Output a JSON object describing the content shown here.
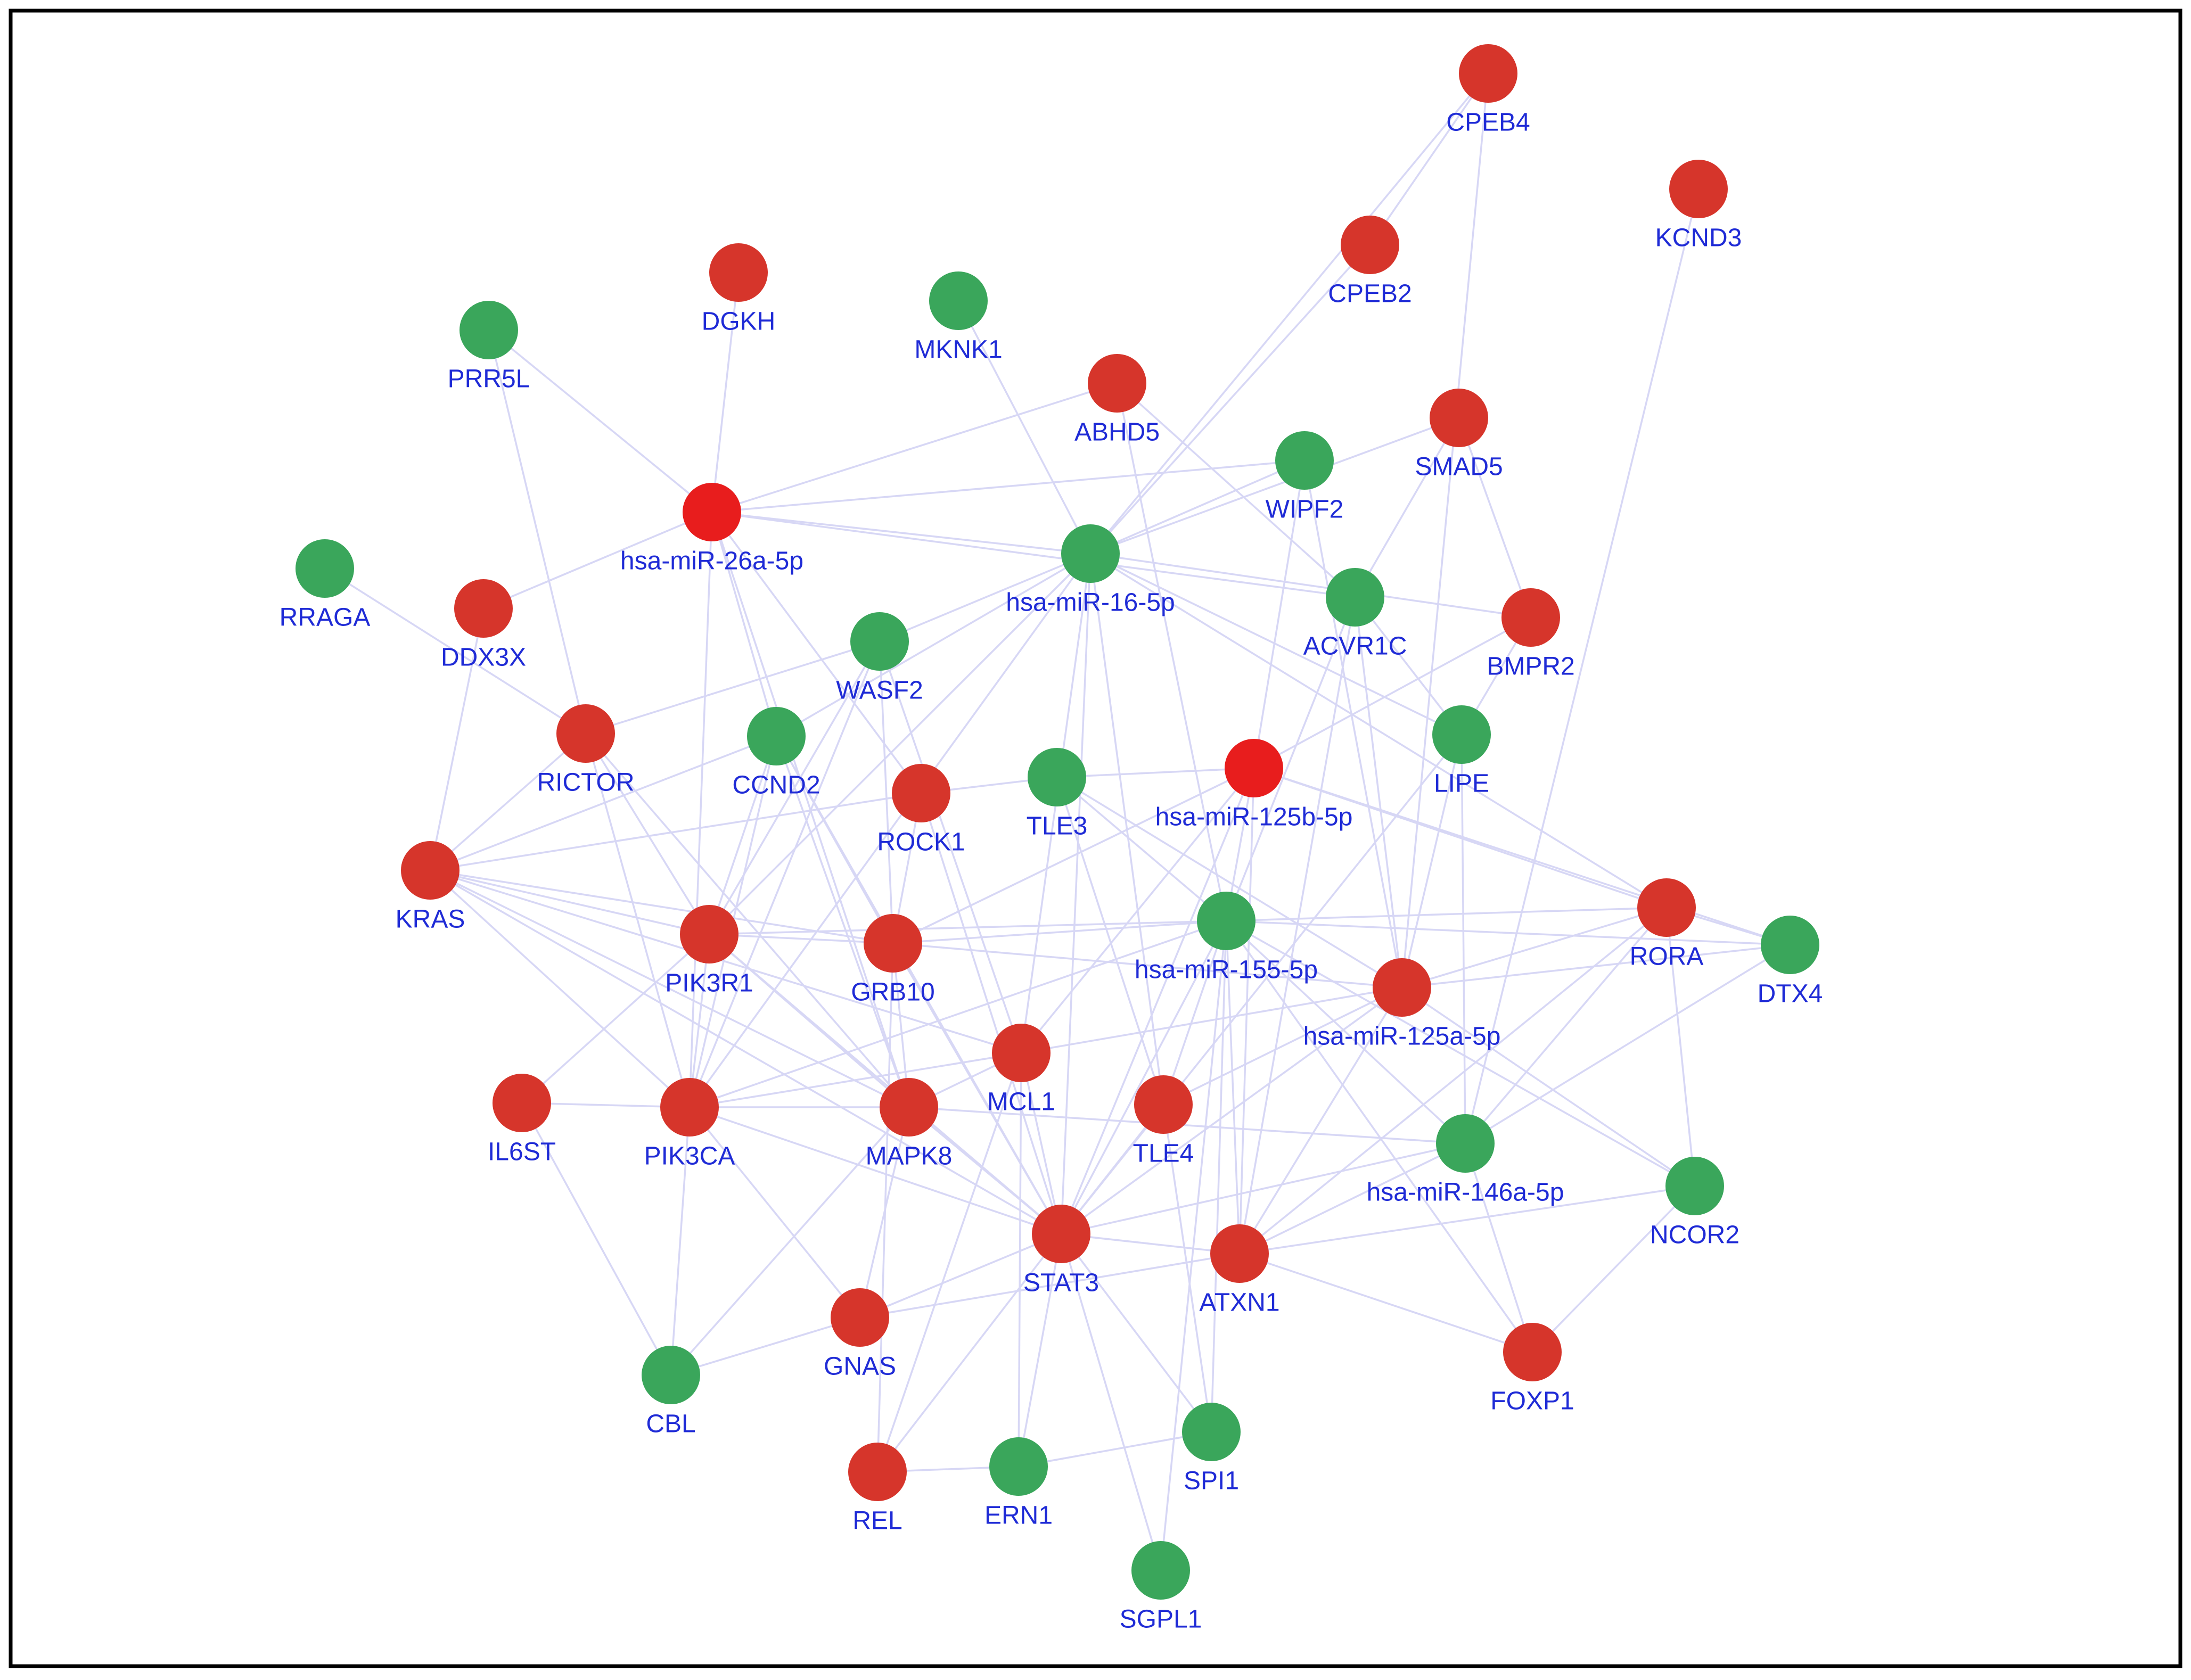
{
  "colors": {
    "edge": "#d7d7f5",
    "node_red": "#d6352b",
    "node_bright_red": "#e81d1d",
    "node_green": "#3aa65b",
    "label": "#1f2bd6",
    "border": "#000000",
    "background": "#ffffff"
  },
  "nodes": [
    {
      "id": "CPEB4",
      "label": "CPEB4",
      "color": "red"
    },
    {
      "id": "KCND3",
      "label": "KCND3",
      "color": "red"
    },
    {
      "id": "CPEB2",
      "label": "CPEB2",
      "color": "red"
    },
    {
      "id": "DGKH",
      "label": "DGKH",
      "color": "red"
    },
    {
      "id": "MKNK1",
      "label": "MKNK1",
      "color": "green"
    },
    {
      "id": "PRR5L",
      "label": "PRR5L",
      "color": "green"
    },
    {
      "id": "ABHD5",
      "label": "ABHD5",
      "color": "red"
    },
    {
      "id": "SMAD5",
      "label": "SMAD5",
      "color": "red"
    },
    {
      "id": "WIPF2",
      "label": "WIPF2",
      "color": "green"
    },
    {
      "id": "miR26a",
      "label": "hsa-miR-26a-5p",
      "color": "bright_red"
    },
    {
      "id": "miR16",
      "label": "hsa-miR-16-5p",
      "color": "green"
    },
    {
      "id": "RRAGA",
      "label": "RRAGA",
      "color": "green"
    },
    {
      "id": "DDX3X",
      "label": "DDX3X",
      "color": "red"
    },
    {
      "id": "ACVR1C",
      "label": "ACVR1C",
      "color": "green"
    },
    {
      "id": "BMPR2",
      "label": "BMPR2",
      "color": "red"
    },
    {
      "id": "WASF2",
      "label": "WASF2",
      "color": "green"
    },
    {
      "id": "RICTOR",
      "label": "RICTOR",
      "color": "red"
    },
    {
      "id": "CCND2",
      "label": "CCND2",
      "color": "green"
    },
    {
      "id": "LIPE",
      "label": "LIPE",
      "color": "green"
    },
    {
      "id": "ROCK1",
      "label": "ROCK1",
      "color": "red"
    },
    {
      "id": "TLE3",
      "label": "TLE3",
      "color": "green"
    },
    {
      "id": "miR125b",
      "label": "hsa-miR-125b-5p",
      "color": "bright_red"
    },
    {
      "id": "KRAS",
      "label": "KRAS",
      "color": "red"
    },
    {
      "id": "PIK3R1",
      "label": "PIK3R1",
      "color": "red"
    },
    {
      "id": "GRB10",
      "label": "GRB10",
      "color": "red"
    },
    {
      "id": "miR155",
      "label": "hsa-miR-155-5p",
      "color": "green"
    },
    {
      "id": "RORA",
      "label": "RORA",
      "color": "red"
    },
    {
      "id": "DTX4",
      "label": "DTX4",
      "color": "green"
    },
    {
      "id": "miR125a",
      "label": "hsa-miR-125a-5p",
      "color": "red"
    },
    {
      "id": "MCL1",
      "label": "MCL1",
      "color": "red"
    },
    {
      "id": "IL6ST",
      "label": "IL6ST",
      "color": "red"
    },
    {
      "id": "PIK3CA",
      "label": "PIK3CA",
      "color": "red"
    },
    {
      "id": "MAPK8",
      "label": "MAPK8",
      "color": "red"
    },
    {
      "id": "TLE4",
      "label": "TLE4",
      "color": "red"
    },
    {
      "id": "miR146a",
      "label": "hsa-miR-146a-5p",
      "color": "green"
    },
    {
      "id": "NCOR2",
      "label": "NCOR2",
      "color": "green"
    },
    {
      "id": "STAT3",
      "label": "STAT3",
      "color": "red"
    },
    {
      "id": "ATXN1",
      "label": "ATXN1",
      "color": "red"
    },
    {
      "id": "GNAS",
      "label": "GNAS",
      "color": "red"
    },
    {
      "id": "FOXP1",
      "label": "FOXP1",
      "color": "red"
    },
    {
      "id": "CBL",
      "label": "CBL",
      "color": "green"
    },
    {
      "id": "SPI1",
      "label": "SPI1",
      "color": "green"
    },
    {
      "id": "REL",
      "label": "REL",
      "color": "red"
    },
    {
      "id": "ERN1",
      "label": "ERN1",
      "color": "green"
    },
    {
      "id": "SGPL1",
      "label": "SGPL1",
      "color": "green"
    }
  ],
  "edges": [
    [
      "CPEB4",
      "miR16"
    ],
    [
      "CPEB4",
      "CPEB2"
    ],
    [
      "CPEB4",
      "miR125a"
    ],
    [
      "KCND3",
      "miR146a"
    ],
    [
      "CPEB2",
      "miR16"
    ],
    [
      "DGKH",
      "miR26a"
    ],
    [
      "MKNK1",
      "miR16"
    ],
    [
      "PRR5L",
      "miR26a"
    ],
    [
      "PRR5L",
      "RICTOR"
    ],
    [
      "ABHD5",
      "miR26a"
    ],
    [
      "ABHD5",
      "ACVR1C"
    ],
    [
      "ABHD5",
      "miR155"
    ],
    [
      "SMAD5",
      "ACVR1C"
    ],
    [
      "SMAD5",
      "BMPR2"
    ],
    [
      "SMAD5",
      "miR16"
    ],
    [
      "WIPF2",
      "miR26a"
    ],
    [
      "WIPF2",
      "miR16"
    ],
    [
      "WIPF2",
      "miR125b"
    ],
    [
      "WIPF2",
      "miR125a"
    ],
    [
      "miR26a",
      "miR16"
    ],
    [
      "miR26a",
      "DDX3X"
    ],
    [
      "miR26a",
      "CCND2"
    ],
    [
      "miR26a",
      "ROCK1"
    ],
    [
      "miR26a",
      "PIK3CA"
    ],
    [
      "miR26a",
      "MAPK8"
    ],
    [
      "miR26a",
      "ACVR1C"
    ],
    [
      "miR16",
      "WASF2"
    ],
    [
      "miR16",
      "BMPR2"
    ],
    [
      "miR16",
      "LIPE"
    ],
    [
      "miR16",
      "PIK3R1"
    ],
    [
      "miR16",
      "TLE4"
    ],
    [
      "miR16",
      "CCND2"
    ],
    [
      "miR16",
      "MCL1"
    ],
    [
      "miR16",
      "RORA"
    ],
    [
      "miR16",
      "PIK3CA"
    ],
    [
      "miR16",
      "STAT3"
    ],
    [
      "RRAGA",
      "RICTOR"
    ],
    [
      "DDX3X",
      "KRAS"
    ],
    [
      "ACVR1C",
      "miR155"
    ],
    [
      "ACVR1C",
      "miR125a"
    ],
    [
      "ACVR1C",
      "ATXN1"
    ],
    [
      "ACVR1C",
      "LIPE"
    ],
    [
      "BMPR2",
      "miR125b"
    ],
    [
      "BMPR2",
      "LIPE"
    ],
    [
      "WASF2",
      "RICTOR"
    ],
    [
      "WASF2",
      "PIK3CA"
    ],
    [
      "WASF2",
      "GRB10"
    ],
    [
      "WASF2",
      "MCL1"
    ],
    [
      "WASF2",
      "PIK3R1"
    ],
    [
      "RICTOR",
      "KRAS"
    ],
    [
      "RICTOR",
      "PIK3R1"
    ],
    [
      "RICTOR",
      "MAPK8"
    ],
    [
      "RICTOR",
      "PIK3CA"
    ],
    [
      "CCND2",
      "KRAS"
    ],
    [
      "CCND2",
      "PIK3CA"
    ],
    [
      "CCND2",
      "GRB10"
    ],
    [
      "CCND2",
      "MAPK8"
    ],
    [
      "CCND2",
      "PIK3R1"
    ],
    [
      "CCND2",
      "STAT3"
    ],
    [
      "LIPE",
      "miR125a"
    ],
    [
      "LIPE",
      "miR146a"
    ],
    [
      "LIPE",
      "STAT3"
    ],
    [
      "ROCK1",
      "KRAS"
    ],
    [
      "ROCK1",
      "TLE3"
    ],
    [
      "ROCK1",
      "GRB10"
    ],
    [
      "ROCK1",
      "STAT3"
    ],
    [
      "TLE3",
      "miR125b"
    ],
    [
      "TLE3",
      "miR155"
    ],
    [
      "TLE3",
      "TLE4"
    ],
    [
      "TLE3",
      "miR125a"
    ],
    [
      "miR125b",
      "RORA"
    ],
    [
      "miR125b",
      "GRB10"
    ],
    [
      "miR125b",
      "MCL1"
    ],
    [
      "miR125b",
      "miR155"
    ],
    [
      "miR125b",
      "DTX4"
    ],
    [
      "miR125b",
      "STAT3"
    ],
    [
      "miR125b",
      "ATXN1"
    ],
    [
      "KRAS",
      "PIK3R1"
    ],
    [
      "KRAS",
      "PIK3CA"
    ],
    [
      "KRAS",
      "GRB10"
    ],
    [
      "KRAS",
      "MAPK8"
    ],
    [
      "KRAS",
      "MCL1"
    ],
    [
      "KRAS",
      "STAT3"
    ],
    [
      "PIK3R1",
      "PIK3CA"
    ],
    [
      "PIK3R1",
      "GRB10"
    ],
    [
      "PIK3R1",
      "IL6ST"
    ],
    [
      "PIK3R1",
      "STAT3"
    ],
    [
      "PIK3R1",
      "miR155"
    ],
    [
      "PIK3R1",
      "MAPK8"
    ],
    [
      "GRB10",
      "MAPK8"
    ],
    [
      "GRB10",
      "miR155"
    ],
    [
      "GRB10",
      "STAT3"
    ],
    [
      "GRB10",
      "miR125a"
    ],
    [
      "GRB10",
      "REL"
    ],
    [
      "miR155",
      "RORA"
    ],
    [
      "miR155",
      "DTX4"
    ],
    [
      "miR155",
      "STAT3"
    ],
    [
      "miR155",
      "ATXN1"
    ],
    [
      "miR155",
      "SPI1"
    ],
    [
      "miR155",
      "SGPL1"
    ],
    [
      "miR155",
      "miR146a"
    ],
    [
      "miR155",
      "FOXP1"
    ],
    [
      "miR155",
      "NCOR2"
    ],
    [
      "miR155",
      "TLE4"
    ],
    [
      "miR155",
      "PIK3CA"
    ],
    [
      "RORA",
      "miR125a"
    ],
    [
      "RORA",
      "DTX4"
    ],
    [
      "RORA",
      "NCOR2"
    ],
    [
      "RORA",
      "ATXN1"
    ],
    [
      "RORA",
      "miR146a"
    ],
    [
      "DTX4",
      "miR125a"
    ],
    [
      "DTX4",
      "miR146a"
    ],
    [
      "miR125a",
      "MCL1"
    ],
    [
      "miR125a",
      "STAT3"
    ],
    [
      "miR125a",
      "ATXN1"
    ],
    [
      "miR125a",
      "NCOR2"
    ],
    [
      "miR125a",
      "TLE4"
    ],
    [
      "MCL1",
      "MAPK8"
    ],
    [
      "MCL1",
      "PIK3CA"
    ],
    [
      "MCL1",
      "STAT3"
    ],
    [
      "MCL1",
      "REL"
    ],
    [
      "MCL1",
      "ERN1"
    ],
    [
      "IL6ST",
      "PIK3CA"
    ],
    [
      "IL6ST",
      "CBL"
    ],
    [
      "PIK3CA",
      "MAPK8"
    ],
    [
      "PIK3CA",
      "STAT3"
    ],
    [
      "PIK3CA",
      "GNAS"
    ],
    [
      "PIK3CA",
      "CBL"
    ],
    [
      "MAPK8",
      "STAT3"
    ],
    [
      "MAPK8",
      "GNAS"
    ],
    [
      "MAPK8",
      "CBL"
    ],
    [
      "MAPK8",
      "miR146a"
    ],
    [
      "TLE4",
      "STAT3"
    ],
    [
      "TLE4",
      "SPI1"
    ],
    [
      "miR146a",
      "STAT3"
    ],
    [
      "miR146a",
      "ATXN1"
    ],
    [
      "miR146a",
      "FOXP1"
    ],
    [
      "NCOR2",
      "ATXN1"
    ],
    [
      "NCOR2",
      "FOXP1"
    ],
    [
      "STAT3",
      "ATXN1"
    ],
    [
      "STAT3",
      "GNAS"
    ],
    [
      "STAT3",
      "SPI1"
    ],
    [
      "STAT3",
      "REL"
    ],
    [
      "STAT3",
      "ERN1"
    ],
    [
      "STAT3",
      "SGPL1"
    ],
    [
      "ATXN1",
      "GNAS"
    ],
    [
      "ATXN1",
      "FOXP1"
    ],
    [
      "GNAS",
      "CBL"
    ],
    [
      "REL",
      "ERN1"
    ],
    [
      "ERN1",
      "SPI1"
    ]
  ]
}
